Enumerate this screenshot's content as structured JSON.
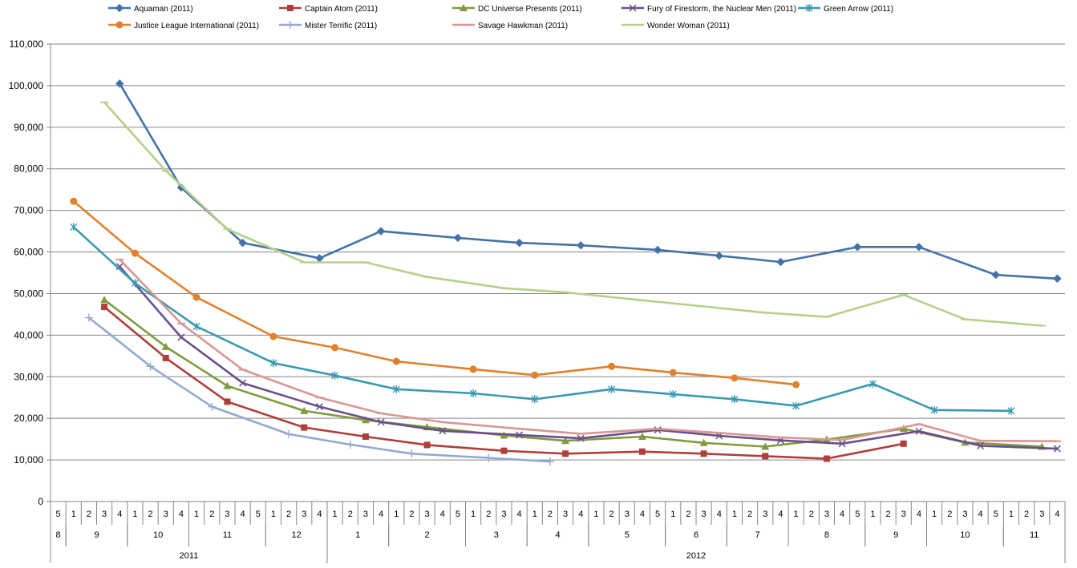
{
  "chart_data": {
    "type": "line",
    "title": "",
    "xlabel": "",
    "ylabel": "",
    "ylim": [
      0,
      110000
    ],
    "ytick_step": 10000,
    "y_tick_labels": [
      "0",
      "10,000",
      "20,000",
      "30,000",
      "40,000",
      "50,000",
      "60,000",
      "70,000",
      "80,000",
      "90,000",
      "100,000",
      "110,000"
    ],
    "grid": true,
    "legend_position": "top",
    "x_weeks": [
      "5",
      "1",
      "2",
      "3",
      "4",
      "1",
      "2",
      "3",
      "4",
      "1",
      "2",
      "3",
      "4",
      "5",
      "1",
      "2",
      "3",
      "4",
      "1",
      "2",
      "3",
      "4",
      "1",
      "2",
      "3",
      "4",
      "5",
      "1",
      "2",
      "3",
      "4",
      "1",
      "2",
      "3",
      "4",
      "1",
      "2",
      "3",
      "4",
      "5",
      "1",
      "2",
      "3",
      "4",
      "1",
      "2",
      "3",
      "4",
      "1",
      "2",
      "3",
      "4",
      "5",
      "1",
      "2",
      "3",
      "4",
      "1",
      "2",
      "3",
      "4",
      "5",
      "1",
      "2",
      "3",
      "4"
    ],
    "x_months": [
      {
        "label": "8",
        "start": 0,
        "end": 0
      },
      {
        "label": "9",
        "start": 1,
        "end": 4
      },
      {
        "label": "10",
        "start": 5,
        "end": 8
      },
      {
        "label": "11",
        "start": 9,
        "end": 13
      },
      {
        "label": "12",
        "start": 14,
        "end": 17
      },
      {
        "label": "1",
        "start": 18,
        "end": 21
      },
      {
        "label": "2",
        "start": 22,
        "end": 26
      },
      {
        "label": "3",
        "start": 27,
        "end": 30
      },
      {
        "label": "4",
        "start": 31,
        "end": 34
      },
      {
        "label": "5",
        "start": 35,
        "end": 39
      },
      {
        "label": "6",
        "start": 40,
        "end": 43
      },
      {
        "label": "7",
        "start": 44,
        "end": 47
      },
      {
        "label": "8",
        "start": 48,
        "end": 52
      },
      {
        "label": "9",
        "start": 53,
        "end": 56
      },
      {
        "label": "10",
        "start": 57,
        "end": 61
      },
      {
        "label": "11",
        "start": 62,
        "end": 65
      }
    ],
    "x_years": [
      {
        "label": "2011",
        "start": 0,
        "end": 17
      },
      {
        "label": "2012",
        "start": 18,
        "end": 65
      }
    ],
    "series": [
      {
        "name": "Aquaman (2011)",
        "color": "#4472A8",
        "marker": "diamond",
        "points": [
          [
            4,
            100500
          ],
          [
            8,
            75500
          ],
          [
            12,
            62200
          ],
          [
            17,
            58500
          ],
          [
            21,
            65000
          ],
          [
            26,
            63400
          ],
          [
            30,
            62200
          ],
          [
            34,
            61600
          ],
          [
            39,
            60500
          ],
          [
            43,
            59100
          ],
          [
            47,
            57600
          ],
          [
            52,
            61200
          ],
          [
            56,
            61200
          ],
          [
            61,
            54500
          ],
          [
            65,
            53600
          ]
        ]
      },
      {
        "name": "Captain Atom (2011)",
        "color": "#AE3F3B",
        "marker": "square",
        "points": [
          [
            3,
            46800
          ],
          [
            7,
            34500
          ],
          [
            11,
            24000
          ],
          [
            16,
            17800
          ],
          [
            20,
            15600
          ],
          [
            24,
            13600
          ],
          [
            29,
            12200
          ],
          [
            33,
            11500
          ],
          [
            38,
            12000
          ],
          [
            42,
            11500
          ],
          [
            46,
            10900
          ],
          [
            50,
            10300
          ],
          [
            55,
            13900
          ]
        ]
      },
      {
        "name": "DC Universe Presents (2011)",
        "color": "#7E9B3E",
        "marker": "triangle",
        "points": [
          [
            3,
            48500
          ],
          [
            7,
            37200
          ],
          [
            11,
            27800
          ],
          [
            16,
            21800
          ],
          [
            20,
            19600
          ],
          [
            24,
            17900
          ],
          [
            29,
            15900
          ],
          [
            33,
            14600
          ],
          [
            38,
            15600
          ],
          [
            42,
            14100
          ],
          [
            46,
            13200
          ],
          [
            50,
            14900
          ],
          [
            55,
            17500
          ],
          [
            59,
            14200
          ],
          [
            64,
            13200
          ]
        ]
      },
      {
        "name": "Fury of Firestorm, the Nuclear Men (2011)",
        "color": "#6A4F8C",
        "marker": "x",
        "points": [
          [
            4,
            56500
          ],
          [
            8,
            39500
          ],
          [
            12,
            28500
          ],
          [
            17,
            22800
          ],
          [
            21,
            19100
          ],
          [
            25,
            17000
          ],
          [
            30,
            16000
          ],
          [
            34,
            15200
          ],
          [
            39,
            17200
          ],
          [
            43,
            15800
          ],
          [
            47,
            14700
          ],
          [
            51,
            13900
          ],
          [
            56,
            16900
          ],
          [
            60,
            13400
          ],
          [
            65,
            12700
          ]
        ]
      },
      {
        "name": "Green Arrow (2011)",
        "color": "#3A9AB0",
        "marker": "asterisk",
        "points": [
          [
            1,
            66000
          ],
          [
            5,
            52500
          ],
          [
            9,
            42100
          ],
          [
            14,
            33300
          ],
          [
            18,
            30300
          ],
          [
            22,
            27000
          ],
          [
            27,
            26000
          ],
          [
            31,
            24600
          ],
          [
            36,
            27000
          ],
          [
            40,
            25800
          ],
          [
            44,
            24600
          ],
          [
            48,
            23000
          ],
          [
            53,
            28300
          ],
          [
            57,
            22000
          ],
          [
            62,
            21800
          ]
        ]
      },
      {
        "name": "Justice League International (2011)",
        "color": "#E1812E",
        "marker": "circle",
        "points": [
          [
            1,
            72200
          ],
          [
            5,
            59700
          ],
          [
            9,
            49100
          ],
          [
            14,
            39700
          ],
          [
            18,
            37000
          ],
          [
            22,
            33700
          ],
          [
            27,
            31800
          ],
          [
            31,
            30400
          ],
          [
            36,
            32500
          ],
          [
            40,
            31000
          ],
          [
            44,
            29700
          ],
          [
            48,
            28100
          ]
        ]
      },
      {
        "name": "Mister Terrific (2011)",
        "color": "#93A9CF",
        "marker": "plus",
        "points": [
          [
            2,
            44200
          ],
          [
            6,
            32500
          ],
          [
            10,
            22800
          ],
          [
            15,
            16200
          ],
          [
            19,
            13700
          ],
          [
            23,
            11500
          ],
          [
            28,
            10500
          ],
          [
            32,
            9600
          ]
        ]
      },
      {
        "name": "Savage Hawkman (2011)",
        "color": "#D99694",
        "marker": "dash",
        "points": [
          [
            4,
            58200
          ],
          [
            8,
            42800
          ],
          [
            12,
            31700
          ],
          [
            17,
            25000
          ],
          [
            21,
            21200
          ],
          [
            25,
            19100
          ],
          [
            30,
            17500
          ],
          [
            34,
            16300
          ],
          [
            39,
            17500
          ],
          [
            43,
            16500
          ],
          [
            47,
            15400
          ],
          [
            51,
            14800
          ],
          [
            56,
            18600
          ],
          [
            60,
            14600
          ],
          [
            65,
            14500
          ]
        ]
      },
      {
        "name": "Wonder Woman (2011)",
        "color": "#B6D08B",
        "marker": "dash",
        "points": [
          [
            3,
            96000
          ],
          [
            7,
            79500
          ],
          [
            11,
            65500
          ],
          [
            16,
            57500
          ],
          [
            20,
            57500
          ],
          [
            24,
            54000
          ],
          [
            29,
            51300
          ],
          [
            33,
            50300
          ],
          [
            38,
            48400
          ],
          [
            42,
            46900
          ],
          [
            46,
            45400
          ],
          [
            50,
            44400
          ],
          [
            55,
            49700
          ],
          [
            59,
            43800
          ],
          [
            64,
            42300
          ]
        ]
      }
    ]
  }
}
